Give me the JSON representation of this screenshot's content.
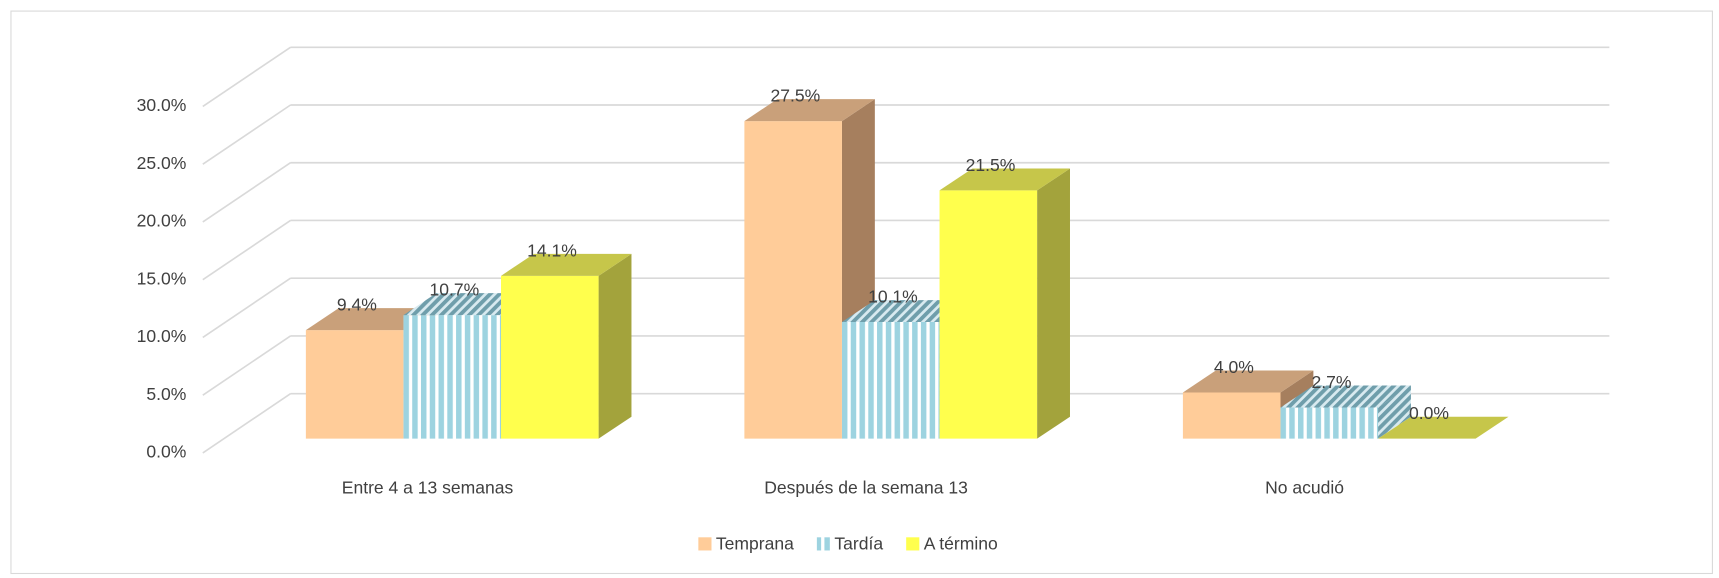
{
  "chart_data": {
    "type": "bar3d",
    "categories": [
      "Entre 4 a 13 semanas",
      "Después de la semana 13",
      "No acudió"
    ],
    "series": [
      {
        "name": "Temprana",
        "color": "#ffcc99",
        "values": [
          9.4,
          27.5,
          4.0
        ],
        "value_labels": [
          "9.4%",
          "27.5%",
          "4.0%"
        ]
      },
      {
        "name": "Tardía",
        "color": "#9dd3e0",
        "values": [
          10.7,
          10.1,
          2.7
        ],
        "value_labels": [
          "10.7%",
          "10.1%",
          "2.7%"
        ]
      },
      {
        "name": "A término",
        "color": "#ffff4d",
        "values": [
          14.1,
          21.5,
          0.0
        ],
        "value_labels": [
          "14.1%",
          "21.5%",
          "0.0%"
        ]
      }
    ],
    "ylim": [
      0,
      30
    ],
    "yticks": [
      {
        "value": 0,
        "label": "0.0%"
      },
      {
        "value": 5,
        "label": "5.0%"
      },
      {
        "value": 10,
        "label": "10.0%"
      },
      {
        "value": 15,
        "label": "15.0%"
      },
      {
        "value": 20,
        "label": "20.0%"
      },
      {
        "value": 25,
        "label": "25.0%"
      },
      {
        "value": 30,
        "label": "30.0%"
      }
    ],
    "grid": true,
    "legend": "bottom"
  }
}
